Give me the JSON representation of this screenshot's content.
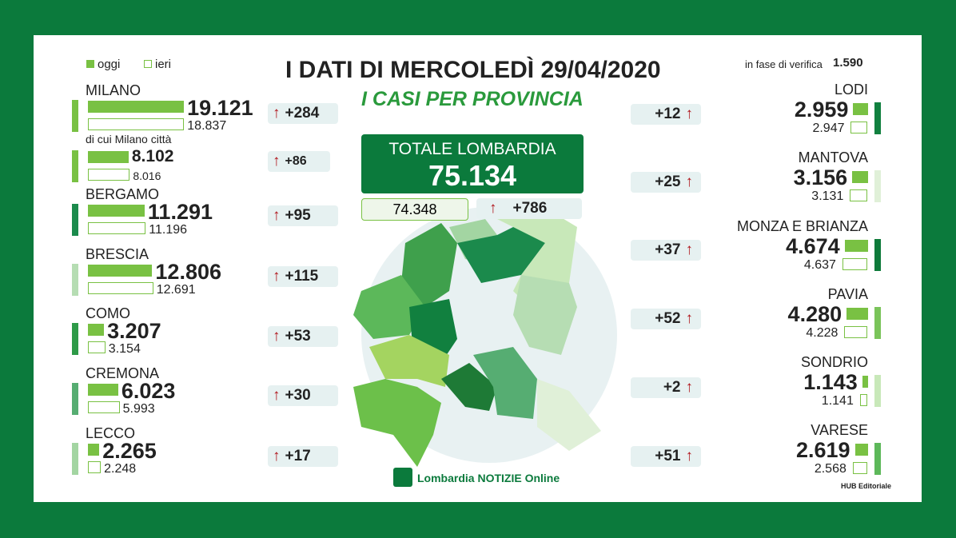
{
  "header": {
    "title": "I DATI DI MERCOLEDÌ 29/04/2020",
    "subtitle": "I CASI PER PROVINCIA",
    "legend_today": "oggi",
    "legend_yesterday": "ieri",
    "verification_label": "in fase di verifica",
    "verification_value": "1.590"
  },
  "total": {
    "label": "TOTALE LOMBARDIA",
    "today": "75.134",
    "yesterday": "74.348",
    "delta": "+786"
  },
  "left": [
    {
      "name": "MILANO",
      "today": "19.121",
      "yesterday": "18.837",
      "delta": "+284",
      "color": "#79c143"
    },
    {
      "name": "di cui Milano città",
      "today": "8.102",
      "yesterday": "8.016",
      "delta": "+86",
      "color": "#79c143"
    },
    {
      "name": "BERGAMO",
      "today": "11.291",
      "yesterday": "11.196",
      "delta": "+95",
      "color": "#1b8a4c"
    },
    {
      "name": "BRESCIA",
      "today": "12.806",
      "yesterday": "12.691",
      "delta": "+115",
      "color": "#b6ddb3"
    },
    {
      "name": "COMO",
      "today": "3.207",
      "yesterday": "3.154",
      "delta": "+53",
      "color": "#2e9a48"
    },
    {
      "name": "CREMONA",
      "today": "6.023",
      "yesterday": "5.993",
      "delta": "+30",
      "color": "#56ad72"
    },
    {
      "name": "LECCO",
      "today": "2.265",
      "yesterday": "2.248",
      "delta": "+17",
      "color": "#a3d5a2"
    }
  ],
  "right": [
    {
      "name": "LODI",
      "today": "2.959",
      "yesterday": "2.947",
      "delta": "+12",
      "color": "#11803f"
    },
    {
      "name": "MANTOVA",
      "today": "3.156",
      "yesterday": "3.131",
      "delta": "+25",
      "color": "#e0f0d8"
    },
    {
      "name": "MONZA E BRIANZA",
      "today": "4.674",
      "yesterday": "4.637",
      "delta": "+37",
      "color": "#0e7a3a"
    },
    {
      "name": "PAVIA",
      "today": "4.280",
      "yesterday": "4.228",
      "delta": "+52",
      "color": "#7ac45a"
    },
    {
      "name": "SONDRIO",
      "today": "1.143",
      "yesterday": "1.141",
      "delta": "+2",
      "color": "#c8e8b9"
    },
    {
      "name": "VARESE",
      "today": "2.619",
      "yesterday": "2.568",
      "delta": "+51",
      "color": "#5db85a"
    }
  ],
  "footer": {
    "logo": "Lombardia NOTIZIE Online",
    "credit": "HUB Editoriale"
  }
}
